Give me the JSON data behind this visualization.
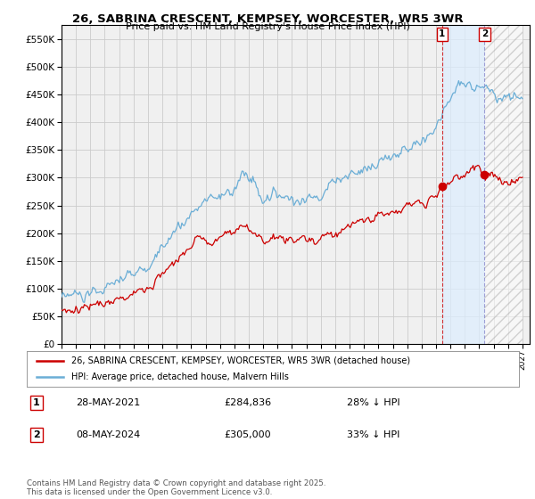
{
  "title": "26, SABRINA CRESCENT, KEMPSEY, WORCESTER, WR5 3WR",
  "subtitle": "Price paid vs. HM Land Registry's House Price Index (HPI)",
  "legend_label_red": "26, SABRINA CRESCENT, KEMPSEY, WORCESTER, WR5 3WR (detached house)",
  "legend_label_blue": "HPI: Average price, detached house, Malvern Hills",
  "annotation1_date": "28-MAY-2021",
  "annotation1_price": "£284,836",
  "annotation1_hpi": "28% ↓ HPI",
  "annotation2_date": "08-MAY-2024",
  "annotation2_price": "£305,000",
  "annotation2_hpi": "33% ↓ HPI",
  "footer": "Contains HM Land Registry data © Crown copyright and database right 2025.\nThis data is licensed under the Open Government Licence v3.0.",
  "ylim": [
    0,
    575000
  ],
  "yticks": [
    0,
    50000,
    100000,
    150000,
    200000,
    250000,
    300000,
    350000,
    400000,
    450000,
    500000,
    550000
  ],
  "background_color": "#ffffff",
  "plot_bg_color": "#f0f0f0",
  "grid_color": "#cccccc",
  "red_color": "#cc0000",
  "blue_color": "#6baed6",
  "blue_shade": "#ddeeff",
  "annotation_box_color": "#cc0000",
  "vline1_color": "#cc0000",
  "vline2_color": "#8888cc",
  "sale1_year": 2021.42,
  "sale2_year": 2024.37,
  "sale1_value": 284836,
  "sale2_value": 305000,
  "xstart": 1995,
  "xend": 2027
}
